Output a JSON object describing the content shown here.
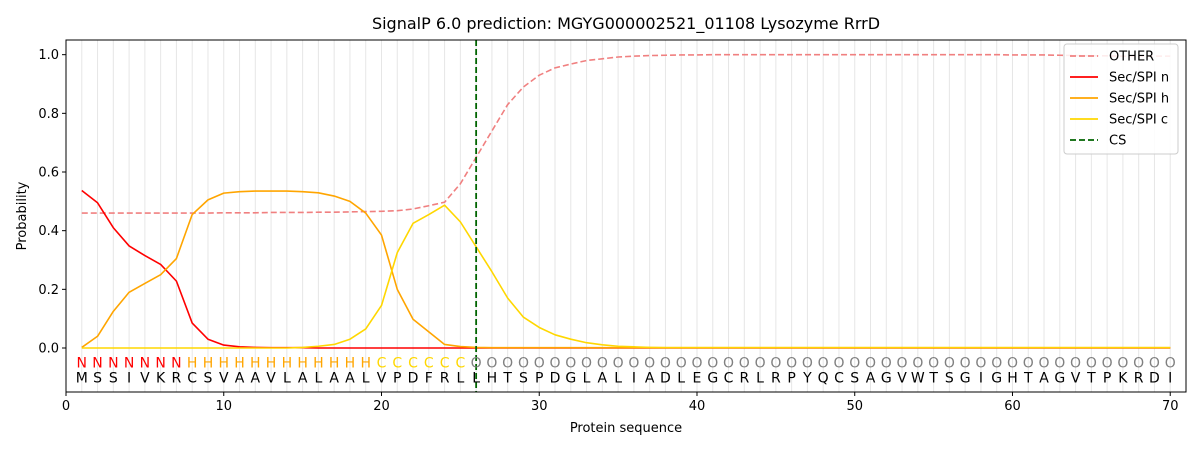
{
  "chart_data": {
    "type": "line",
    "title": "SignalP 6.0 prediction: MGYG000002521_01108 Lysozyme RrrD",
    "xlabel": "Protein sequence",
    "ylabel": "Probability",
    "xlim": [
      0,
      71
    ],
    "ylim": [
      -0.15,
      1.05
    ],
    "xticks": [
      "0",
      "10",
      "20",
      "30",
      "40",
      "50",
      "60",
      "70"
    ],
    "yticks": [
      "0.0",
      "0.2",
      "0.4",
      "0.6",
      "0.8",
      "1.0"
    ],
    "sequence": [
      "M",
      "S",
      "S",
      "I",
      "V",
      "K",
      "R",
      "C",
      "S",
      "V",
      "A",
      "A",
      "V",
      "L",
      "A",
      "L",
      "A",
      "A",
      "L",
      "V",
      "P",
      "D",
      "F",
      "R",
      "L",
      "L",
      "H",
      "T",
      "S",
      "P",
      "D",
      "G",
      "L",
      "A",
      "L",
      "I",
      "A",
      "D",
      "L",
      "E",
      "G",
      "C",
      "R",
      "L",
      "R",
      "P",
      "Y",
      "Q",
      "C",
      "S",
      "A",
      "G",
      "V",
      "W",
      "T",
      "S",
      "G",
      "I",
      "G",
      "H",
      "T",
      "A",
      "G",
      "V",
      "T",
      "P",
      "K",
      "R",
      "D",
      "I"
    ],
    "labels": [
      "N",
      "N",
      "N",
      "N",
      "N",
      "N",
      "N",
      "H",
      "H",
      "H",
      "H",
      "H",
      "H",
      "H",
      "H",
      "H",
      "H",
      "H",
      "H",
      "C",
      "C",
      "C",
      "C",
      "C",
      "C",
      "O",
      "O",
      "O",
      "O",
      "O",
      "O",
      "O",
      "O",
      "O",
      "O",
      "O",
      "O",
      "O",
      "O",
      "O",
      "O",
      "O",
      "O",
      "O",
      "O",
      "O",
      "O",
      "O",
      "O",
      "O",
      "O",
      "O",
      "O",
      "O",
      "O",
      "O",
      "O",
      "O",
      "O",
      "O",
      "O",
      "O",
      "O",
      "O",
      "O",
      "O",
      "O",
      "O",
      "O",
      "O"
    ],
    "label_colors": {
      "N": "#ff0000",
      "H": "#ffa500",
      "C": "#ffd700",
      "O": "#808080"
    },
    "cs_position": 26,
    "series": [
      {
        "name": "OTHER",
        "color": "#f08080",
        "dash": true,
        "values": [
          0.46,
          0.46,
          0.46,
          0.46,
          0.46,
          0.46,
          0.46,
          0.46,
          0.46,
          0.461,
          0.461,
          0.461,
          0.462,
          0.462,
          0.462,
          0.463,
          0.463,
          0.464,
          0.465,
          0.466,
          0.468,
          0.474,
          0.485,
          0.497,
          0.56,
          0.65,
          0.74,
          0.83,
          0.89,
          0.93,
          0.955,
          0.968,
          0.98,
          0.986,
          0.992,
          0.995,
          0.997,
          0.998,
          0.999,
          0.999,
          1.0,
          1.0,
          1.0,
          1.0,
          1.0,
          1.0,
          1.0,
          1.0,
          1.0,
          1.0,
          1.0,
          1.0,
          1.0,
          1.0,
          1.0,
          1.0,
          1.0,
          1.0,
          1.0,
          0.999,
          0.999,
          0.999,
          0.998,
          0.997,
          0.996,
          0.996,
          0.995,
          0.995,
          0.995,
          0.995
        ]
      },
      {
        "name": "Sec/SPI n",
        "color": "#ff0000",
        "dash": false,
        "values": [
          0.537,
          0.495,
          0.41,
          0.348,
          0.315,
          0.285,
          0.228,
          0.085,
          0.03,
          0.01,
          0.004,
          0.002,
          0.001,
          0.001,
          0.001,
          0,
          0,
          0,
          0,
          0,
          0,
          0,
          0,
          0,
          0,
          0,
          0,
          0,
          0,
          0,
          0,
          0,
          0,
          0,
          0,
          0,
          0,
          0,
          0,
          0,
          0,
          0,
          0,
          0,
          0,
          0,
          0,
          0,
          0,
          0,
          0,
          0,
          0,
          0,
          0,
          0,
          0,
          0,
          0,
          0,
          0,
          0,
          0,
          0,
          0,
          0,
          0,
          0,
          0,
          0
        ]
      },
      {
        "name": "Sec/SPI h",
        "color": "#ffa500",
        "dash": false,
        "values": [
          0.002,
          0.04,
          0.125,
          0.19,
          0.22,
          0.25,
          0.305,
          0.455,
          0.505,
          0.528,
          0.533,
          0.535,
          0.535,
          0.535,
          0.533,
          0.529,
          0.518,
          0.5,
          0.46,
          0.385,
          0.2,
          0.098,
          0.055,
          0.012,
          0.005,
          0.002,
          0.001,
          0.001,
          0.001,
          0.001,
          0.001,
          0.001,
          0.001,
          0.001,
          0.001,
          0.001,
          0.001,
          0.001,
          0.001,
          0.001,
          0.001,
          0.001,
          0.001,
          0.001,
          0.001,
          0.001,
          0.001,
          0.001,
          0.001,
          0.001,
          0.001,
          0.001,
          0.001,
          0.001,
          0.001,
          0.001,
          0.001,
          0.001,
          0.001,
          0.001,
          0.001,
          0.001,
          0.001,
          0.001,
          0.001,
          0.001,
          0.001,
          0.001,
          0.001,
          0.001
        ]
      },
      {
        "name": "Sec/SPI c",
        "color": "#ffd700",
        "dash": false,
        "values": [
          0,
          0,
          0,
          0,
          0,
          0,
          0,
          0,
          0,
          0,
          0,
          0,
          0,
          0,
          0.002,
          0.006,
          0.012,
          0.03,
          0.065,
          0.145,
          0.325,
          0.425,
          0.455,
          0.487,
          0.43,
          0.345,
          0.26,
          0.17,
          0.105,
          0.07,
          0.045,
          0.03,
          0.018,
          0.011,
          0.006,
          0.004,
          0.002,
          0.001,
          0.001,
          0.001,
          0.001,
          0.001,
          0.001,
          0.001,
          0.001,
          0.001,
          0.001,
          0.001,
          0.001,
          0.001,
          0.001,
          0.001,
          0.001,
          0.001,
          0.001,
          0.001,
          0.001,
          0.001,
          0.001,
          0.001,
          0.001,
          0.001,
          0.001,
          0.001,
          0.001,
          0.001,
          0.001,
          0.001,
          0.001,
          0.001
        ]
      }
    ],
    "legend": {
      "position": "top-right",
      "entries": [
        "OTHER",
        "Sec/SPI n",
        "Sec/SPI h",
        "Sec/SPI c",
        "CS"
      ]
    },
    "cs_color": "#006400"
  }
}
